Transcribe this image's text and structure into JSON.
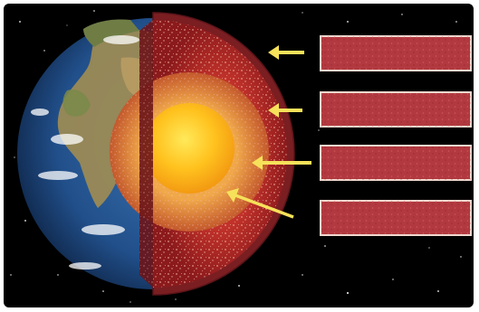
{
  "diagram": {
    "subject": "earth-layers-cutaway",
    "layers": [
      {
        "id": "crust",
        "color": "#8e2a2e"
      },
      {
        "id": "mantle",
        "color": "#b32a25"
      },
      {
        "id": "outer-core",
        "color": "#e08a3a"
      },
      {
        "id": "inner-core",
        "color": "#ffc21e"
      }
    ],
    "label_boxes": [
      {
        "layer": "crust",
        "text": ""
      },
      {
        "layer": "mantle",
        "text": ""
      },
      {
        "layer": "outer-core",
        "text": ""
      },
      {
        "layer": "inner-core",
        "text": ""
      }
    ],
    "colors": {
      "space": "#000000",
      "label_box_fill": "#b1393f",
      "label_box_border": "#f1d8cf",
      "arrow": "#f6e15a"
    }
  }
}
